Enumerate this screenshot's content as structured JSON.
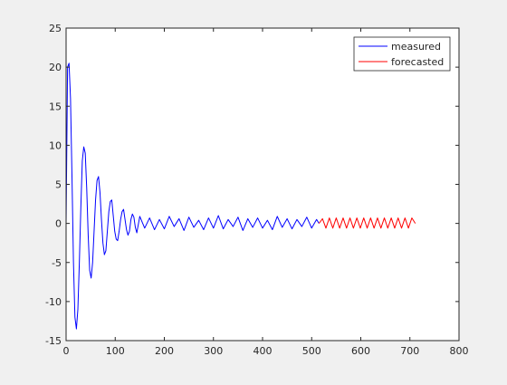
{
  "chart_data": {
    "type": "line",
    "xlim": [
      0,
      800
    ],
    "ylim": [
      -15,
      25
    ],
    "x_ticks": [
      0,
      100,
      200,
      300,
      400,
      500,
      600,
      700,
      800
    ],
    "y_ticks": [
      -15,
      -10,
      -5,
      0,
      5,
      10,
      15,
      20,
      25
    ],
    "x_tick_labels": [
      "0",
      "100",
      "200",
      "300",
      "400",
      "500",
      "600",
      "700",
      "800"
    ],
    "y_tick_labels": [
      "-15",
      "-10",
      "-5",
      "0",
      "5",
      "10",
      "15",
      "20",
      "25"
    ],
    "grid": false,
    "legend_position": "top-right",
    "series": [
      {
        "name": "measured",
        "color": "#0000ff",
        "x": [
          0,
          3,
          6,
          9,
          12,
          15,
          18,
          21,
          24,
          27,
          30,
          33,
          36,
          39,
          42,
          45,
          48,
          51,
          54,
          57,
          60,
          63,
          66,
          69,
          72,
          75,
          78,
          81,
          84,
          87,
          90,
          93,
          96,
          99,
          102,
          105,
          108,
          111,
          114,
          117,
          120,
          123,
          126,
          129,
          132,
          135,
          138,
          141,
          144,
          150,
          160,
          170,
          180,
          190,
          200,
          210,
          220,
          230,
          240,
          250,
          260,
          270,
          280,
          290,
          300,
          310,
          320,
          330,
          340,
          350,
          360,
          370,
          380,
          390,
          400,
          410,
          420,
          430,
          440,
          450,
          460,
          470,
          480,
          490,
          500,
          510,
          515
        ],
        "y": [
          0.0,
          20.0,
          20.5,
          16.0,
          6.0,
          -5.0,
          -12.0,
          -13.5,
          -11.0,
          -5.0,
          2.0,
          8.0,
          9.8,
          9.0,
          4.5,
          -1.5,
          -6.0,
          -7.0,
          -5.0,
          -1.0,
          3.0,
          5.5,
          6.0,
          4.0,
          0.5,
          -2.5,
          -4.0,
          -3.5,
          -1.0,
          1.5,
          2.8,
          3.0,
          1.0,
          -1.0,
          -2.0,
          -2.2,
          -1.0,
          0.5,
          1.5,
          1.8,
          0.5,
          -0.8,
          -1.5,
          -1.0,
          0.5,
          1.2,
          0.8,
          -0.5,
          -1.2,
          0.9,
          -0.6,
          0.7,
          -0.8,
          0.5,
          -0.7,
          0.9,
          -0.4,
          0.6,
          -0.9,
          0.8,
          -0.5,
          0.4,
          -0.8,
          0.7,
          -0.6,
          1.0,
          -0.7,
          0.5,
          -0.4,
          0.8,
          -0.9,
          0.6,
          -0.5,
          0.7,
          -0.6,
          0.4,
          -0.8,
          0.9,
          -0.5,
          0.6,
          -0.7,
          0.5,
          -0.4,
          0.8,
          -0.6,
          0.5,
          0.0
        ]
      },
      {
        "name": "forecasted",
        "color": "#ff0000",
        "x": [
          515,
          522,
          529,
          536,
          543,
          550,
          557,
          564,
          571,
          578,
          585,
          592,
          599,
          606,
          613,
          620,
          627,
          634,
          641,
          648,
          655,
          662,
          669,
          676,
          683,
          690,
          697,
          704,
          711
        ],
        "y": [
          0.0,
          0.6,
          -0.6,
          0.7,
          -0.6,
          0.7,
          -0.6,
          0.7,
          -0.6,
          0.7,
          -0.6,
          0.7,
          -0.6,
          0.7,
          -0.6,
          0.7,
          -0.6,
          0.7,
          -0.6,
          0.7,
          -0.6,
          0.7,
          -0.6,
          0.7,
          -0.6,
          0.7,
          -0.6,
          0.7,
          0.0
        ]
      }
    ]
  }
}
